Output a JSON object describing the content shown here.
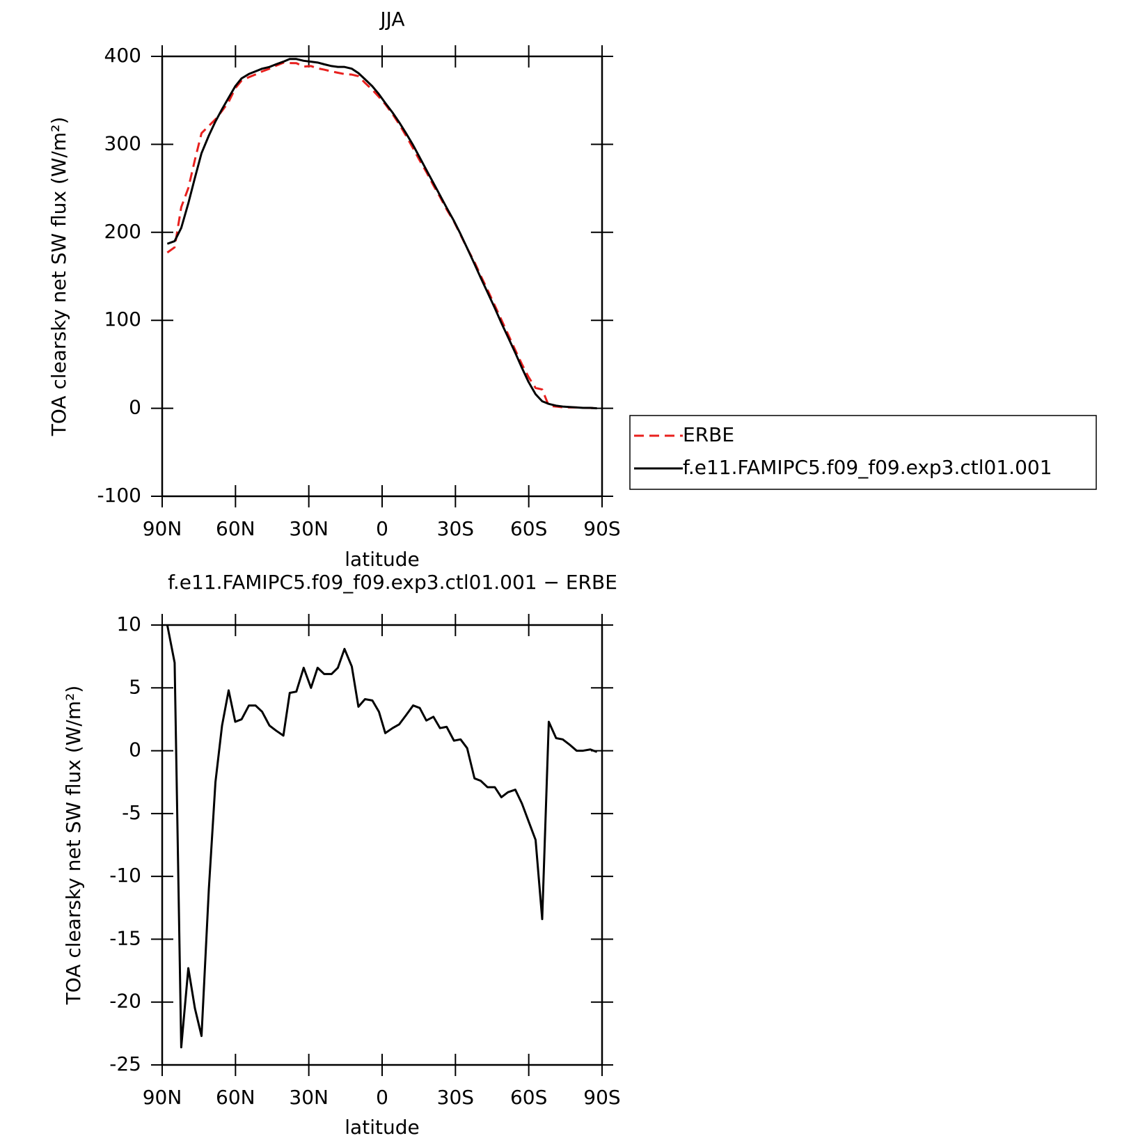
{
  "chart_data": [
    {
      "type": "line",
      "title": "JJA",
      "y_label": "TOA clearsky net SW flux (W/m²)",
      "x_label": "latitude",
      "x": [
        87.9,
        84.9,
        82.2,
        79.3,
        76.6,
        73.9,
        70.9,
        68.2,
        65.5,
        62.8,
        60.1,
        57.5,
        54.5,
        51.8,
        49.1,
        46.1,
        43.4,
        40.4,
        37.8,
        35.1,
        32.1,
        29.1,
        26.4,
        23.7,
        20.7,
        18.1,
        15.4,
        12.4,
        9.7,
        7.0,
        4.0,
        1.3,
        -1.3,
        -4.3,
        -7.0,
        -9.7,
        -12.7,
        -15.4,
        -18.1,
        -21.0,
        -23.7,
        -26.4,
        -29.4,
        -32.1,
        -34.8,
        -37.8,
        -40.4,
        -43.1,
        -46.1,
        -48.8,
        -51.5,
        -54.5,
        -57.2,
        -59.9,
        -62.8,
        -65.5,
        -68.2,
        -71.2,
        -73.9,
        -76.6,
        -79.6,
        -82.2,
        -85.2,
        -87.9
      ],
      "series": [
        {
          "name": "ERBE",
          "color": "#e8201e",
          "dash": "dashed",
          "values": [
            177,
            183,
            228.6,
            250.3,
            282.5,
            312.7,
            321,
            328.5,
            338,
            348.2,
            363.7,
            372.5,
            376.4,
            379.4,
            382.9,
            386,
            389.4,
            392.8,
            392.4,
            392.3,
            388.4,
            389,
            386.4,
            384.9,
            382.9,
            381.4,
            379.9,
            379.3,
            377.5,
            369.9,
            362,
            353.9,
            345.6,
            334.2,
            322.9,
            310.2,
            295.4,
            281.6,
            268.6,
            253.3,
            240.2,
            226.1,
            212.2,
            197.1,
            181.8,
            166.2,
            150.4,
            134.9,
            116.9,
            100.7,
            84.3,
            66.1,
            50.2,
            35.6,
            23.1,
            21.4,
            2.7,
            2,
            1.1,
            1,
            1,
            0.5,
            0.4,
            0.1
          ]
        },
        {
          "name": "f.e11.FAMIPC5.f09_f09.exp3.ctl01.001",
          "color": "#000000",
          "dash": "solid",
          "values": [
            187,
            190,
            205,
            233,
            262,
            290,
            310,
            326,
            340,
            353,
            366,
            375,
            380,
            383,
            386,
            388,
            391,
            394,
            397,
            397,
            395,
            394,
            393,
            391,
            389,
            388,
            388,
            386,
            381,
            374,
            366,
            357,
            347,
            336,
            325,
            313,
            299,
            285,
            271,
            256,
            242,
            228,
            213,
            198,
            182,
            164,
            148,
            132,
            114,
            97,
            81,
            63,
            46,
            30,
            16,
            8,
            5,
            3,
            2,
            1.5,
            1,
            0.5,
            0.5,
            0
          ]
        }
      ],
      "xlim": [
        90,
        -90
      ],
      "xticks": [
        {
          "value": 90,
          "label": "90N"
        },
        {
          "value": 60,
          "label": "60N"
        },
        {
          "value": 30,
          "label": "30N"
        },
        0,
        {
          "value": -30,
          "label": "30S"
        },
        {
          "value": -60,
          "label": "60S"
        },
        {
          "value": -90,
          "label": "90S"
        }
      ],
      "ylim": [
        -100,
        400
      ],
      "yticks": [
        -100,
        0,
        100,
        200,
        300,
        400
      ],
      "legend": "right"
    },
    {
      "type": "line",
      "title": "f.e11.FAMIPC5.f09_f09.exp3.ctl01.001 − ERBE",
      "y_label": "TOA clearsky net SW flux (W/m²)",
      "x_label": "latitude",
      "x": [
        87.9,
        84.9,
        82.2,
        79.3,
        76.6,
        73.9,
        70.9,
        68.2,
        65.5,
        62.8,
        60.1,
        57.5,
        54.5,
        51.8,
        49.1,
        46.1,
        43.4,
        40.4,
        37.8,
        35.1,
        32.1,
        29.1,
        26.4,
        23.7,
        20.7,
        18.1,
        15.4,
        12.4,
        9.7,
        7.0,
        4.0,
        1.3,
        -1.3,
        -4.3,
        -7.0,
        -9.7,
        -12.7,
        -15.4,
        -18.1,
        -21.0,
        -23.7,
        -26.4,
        -29.4,
        -32.1,
        -34.8,
        -37.8,
        -40.4,
        -43.1,
        -46.1,
        -48.8,
        -51.5,
        -54.5,
        -57.2,
        -59.9,
        -62.8,
        -65.5,
        -68.2,
        -71.2,
        -73.9,
        -76.6,
        -79.6,
        -82.2,
        -85.2,
        -87.9
      ],
      "series": [
        {
          "color": "#000000",
          "dash": "solid",
          "values": [
            10,
            7,
            -23.6,
            -17.3,
            -20.5,
            -22.7,
            -11,
            -2.5,
            2,
            4.8,
            2.3,
            2.5,
            3.6,
            3.6,
            3.1,
            2.0,
            1.6,
            1.2,
            4.6,
            4.7,
            6.6,
            5.0,
            6.6,
            6.1,
            6.1,
            6.6,
            8.1,
            6.7,
            3.5,
            4.1,
            4.0,
            3.1,
            1.4,
            1.8,
            2.1,
            2.8,
            3.6,
            3.4,
            2.4,
            2.7,
            1.8,
            1.9,
            0.8,
            0.9,
            0.2,
            -2.2,
            -2.4,
            -2.9,
            -2.9,
            -3.7,
            -3.3,
            -3.1,
            -4.2,
            -5.6,
            -7.1,
            -13.4,
            2.3,
            1.0,
            0.9,
            0.5,
            0,
            0,
            0.1,
            -0.1
          ]
        }
      ],
      "xlim": [
        90,
        -90
      ],
      "xticks": [
        {
          "value": 90,
          "label": "90N"
        },
        {
          "value": 60,
          "label": "60N"
        },
        {
          "value": 30,
          "label": "30N"
        },
        0,
        {
          "value": -30,
          "label": "30S"
        },
        {
          "value": -60,
          "label": "60S"
        },
        {
          "value": -90,
          "label": "90S"
        }
      ],
      "ylim": [
        -25,
        10
      ],
      "yticks": [
        -25,
        -20,
        -15,
        -10,
        -5,
        0,
        5,
        10
      ]
    }
  ]
}
